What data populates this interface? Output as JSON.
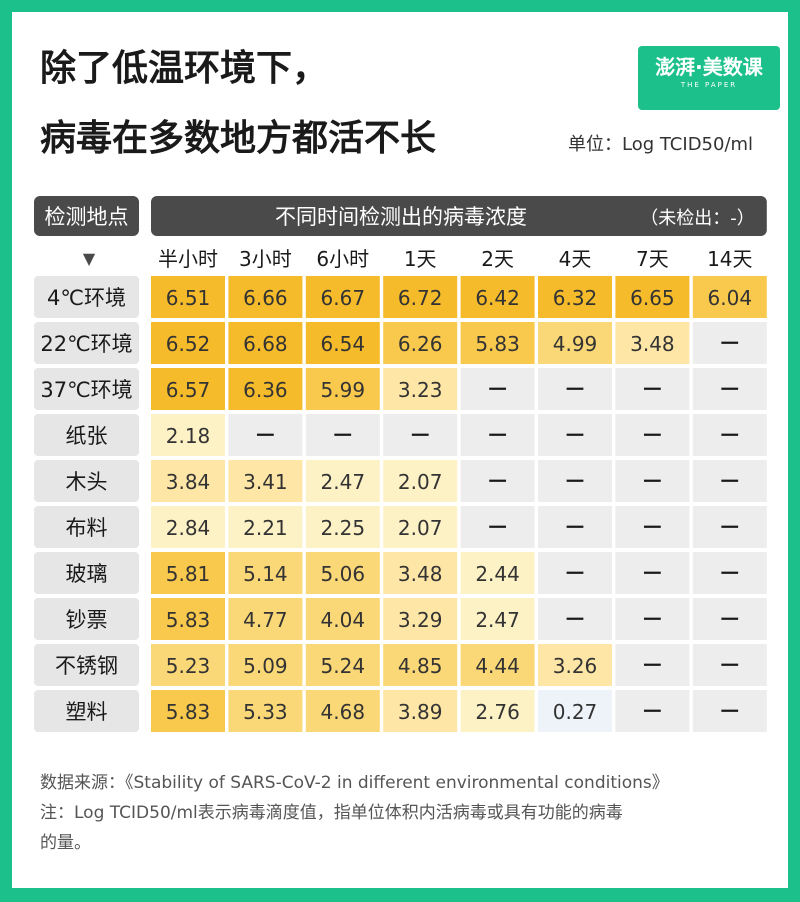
{
  "title_line1": "除了低温环境下，",
  "title_line2": "病毒在多数地方都活不长",
  "brand": "澎湃·美数课",
  "brand_sub": "THE PAPER",
  "unit_label": "单位：Log TCID50/ml",
  "chart_data": {
    "type": "table",
    "row_header": "检测地点",
    "row_header_marker": "▼",
    "column_header": "不同时间检测出的病毒浓度",
    "not_detected_note": "（未检出：-）",
    "not_detected_symbol": "－",
    "categories": [
      "半小时",
      "3小时",
      "6小时",
      "1天",
      "2天",
      "4天",
      "7天",
      "14天"
    ],
    "series": [
      {
        "name": "4℃环境",
        "values": [
          6.51,
          6.66,
          6.67,
          6.72,
          6.42,
          6.32,
          6.65,
          6.04
        ]
      },
      {
        "name": "22℃环境",
        "values": [
          6.52,
          6.68,
          6.54,
          6.26,
          5.83,
          4.99,
          3.48,
          null
        ]
      },
      {
        "name": "37℃环境",
        "values": [
          6.57,
          6.36,
          5.99,
          3.23,
          null,
          null,
          null,
          null
        ]
      },
      {
        "name": "纸张",
        "values": [
          2.18,
          null,
          null,
          null,
          null,
          null,
          null,
          null
        ]
      },
      {
        "name": "木头",
        "values": [
          3.84,
          3.41,
          2.47,
          2.07,
          null,
          null,
          null,
          null
        ]
      },
      {
        "name": "布料",
        "values": [
          2.84,
          2.21,
          2.25,
          2.07,
          null,
          null,
          null,
          null
        ]
      },
      {
        "name": "玻璃",
        "values": [
          5.81,
          5.14,
          5.06,
          3.48,
          2.44,
          null,
          null,
          null
        ]
      },
      {
        "name": "钞票",
        "values": [
          5.83,
          4.77,
          4.04,
          3.29,
          2.47,
          null,
          null,
          null
        ]
      },
      {
        "name": "不锈钢",
        "values": [
          5.23,
          5.09,
          5.24,
          4.85,
          4.44,
          3.26,
          null,
          null
        ]
      },
      {
        "name": "塑料",
        "values": [
          5.83,
          5.33,
          4.68,
          3.89,
          2.76,
          0.27,
          null,
          null
        ]
      }
    ],
    "color_scale": [
      "#eef3fa",
      "#fdf1c6",
      "#fde6a6",
      "#fbd877",
      "#f8c94c",
      "#f5bb2a"
    ],
    "empty_cell_color": "#ededed",
    "header_color": "#4a4a4a",
    "row_label_color": "#e6e6e6"
  },
  "source_line": "数据来源：《Stability of SARS-CoV-2 in different environmental conditions》",
  "note_line1": "注：Log TCID50/ml表示病毒滴度值，指单位体积内活病毒或具有功能的病毒",
  "note_line2": "的量。"
}
